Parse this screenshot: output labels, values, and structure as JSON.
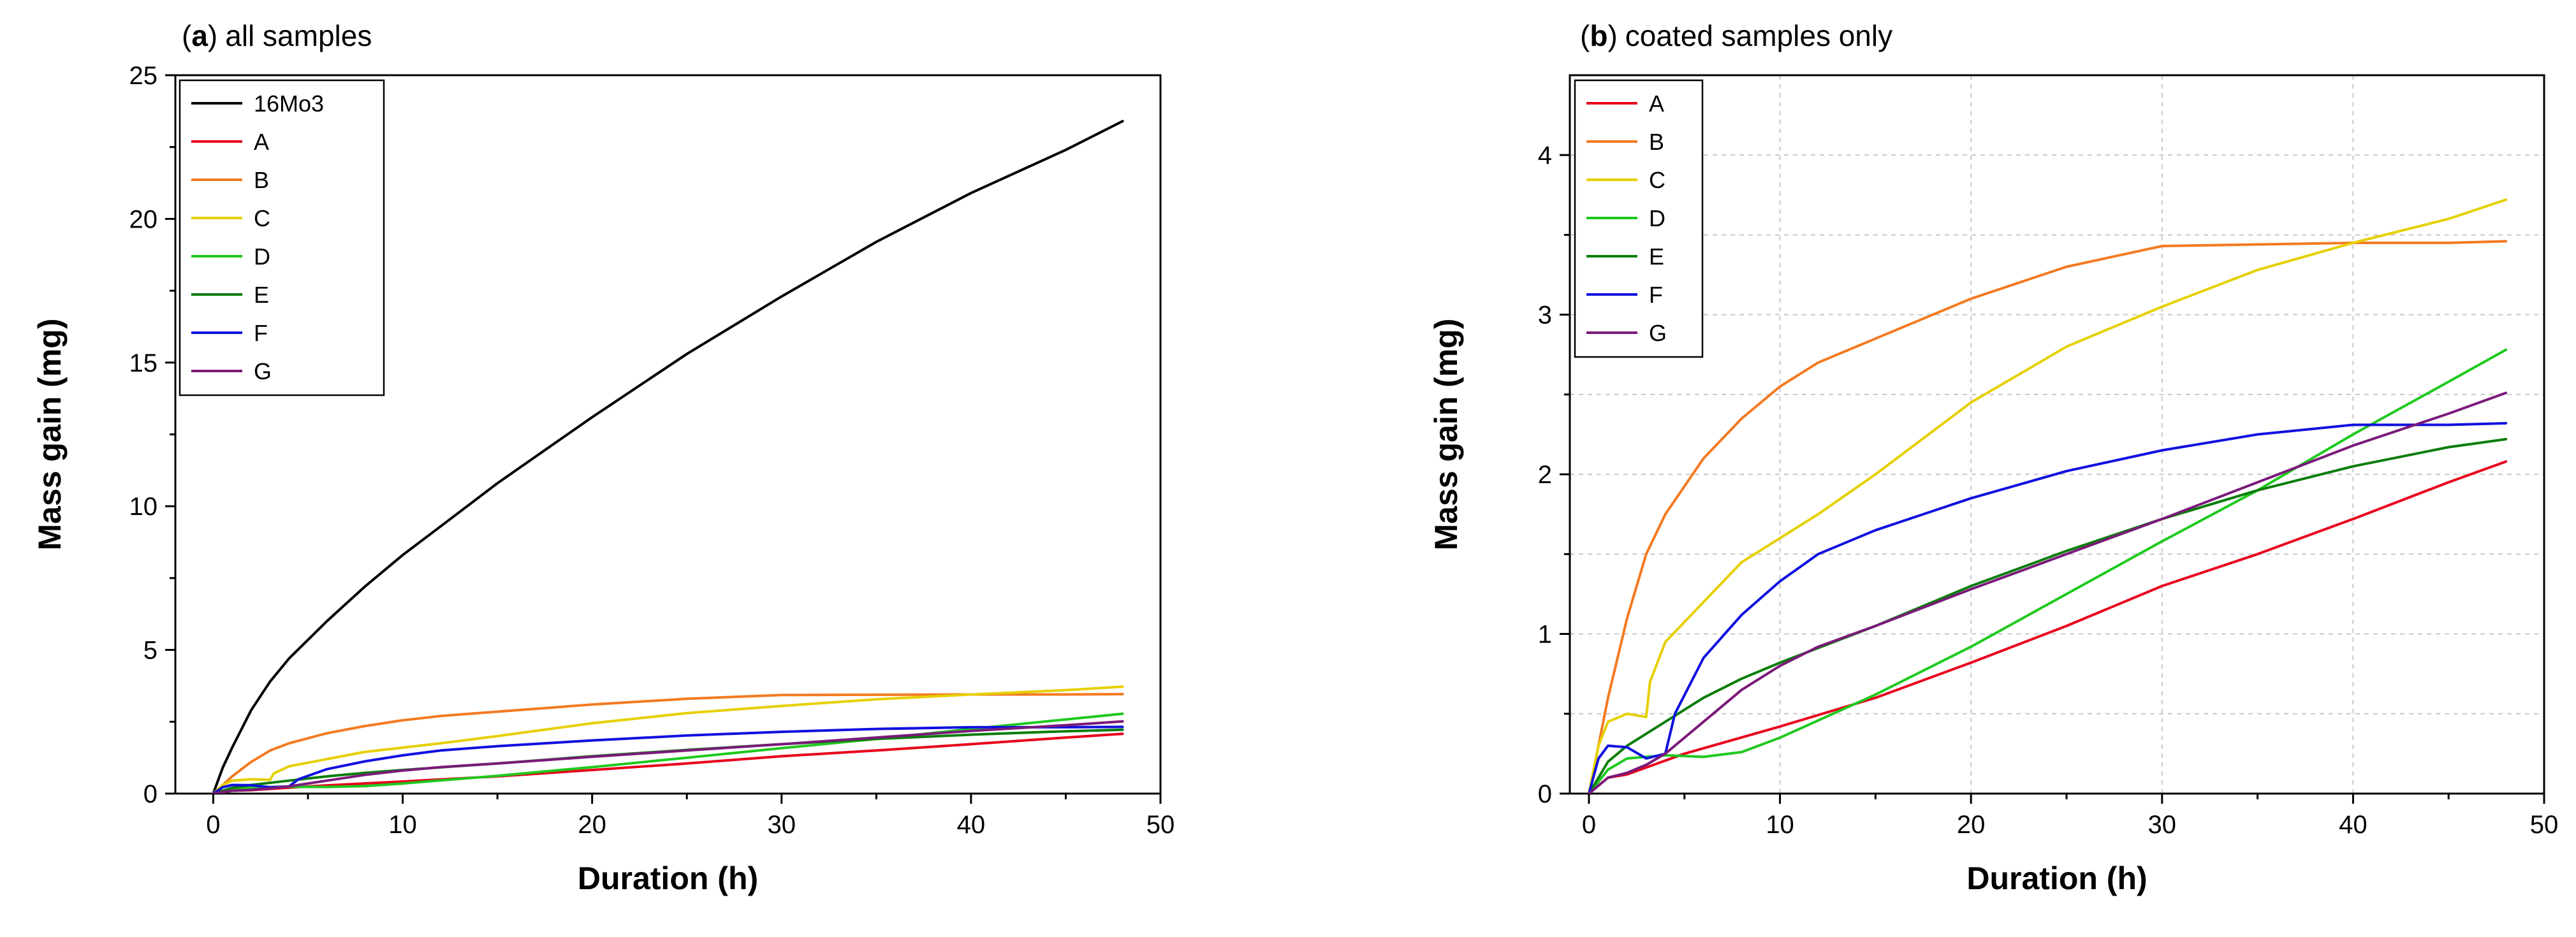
{
  "chart_data": [
    {
      "id": "panel-a",
      "type": "line",
      "title_letter": "a",
      "title_text": "all samples",
      "title_open": "(",
      "title_close": ")",
      "xlabel": "Duration (h)",
      "ylabel": "Mass gain (mg)",
      "xlim": [
        -2,
        50
      ],
      "ylim": [
        0,
        25
      ],
      "xticks": [
        0,
        10,
        20,
        30,
        40,
        50
      ],
      "yticks": [
        0,
        5,
        10,
        15,
        20,
        25
      ],
      "grid": false,
      "legend": "top-left",
      "series": [
        {
          "name": "16Mo3",
          "color": "#000000",
          "x": [
            0,
            0.5,
            1,
            2,
            3,
            4,
            6,
            8,
            10,
            12,
            15,
            20,
            25,
            30,
            35,
            40,
            45,
            48
          ],
          "y": [
            0,
            0.9,
            1.6,
            2.9,
            3.9,
            4.7,
            6.0,
            7.2,
            8.3,
            9.3,
            10.8,
            13.1,
            15.3,
            17.3,
            19.2,
            20.9,
            22.4,
            23.4
          ]
        },
        {
          "name": "A",
          "color": "#e8001c",
          "x": [
            0,
            1,
            2,
            5,
            10,
            15,
            20,
            25,
            30,
            35,
            40,
            45,
            48
          ],
          "y": [
            0,
            0.1,
            0.12,
            0.25,
            0.42,
            0.6,
            0.82,
            1.05,
            1.3,
            1.5,
            1.72,
            1.95,
            2.08
          ]
        },
        {
          "name": "B",
          "color": "#f47a20",
          "x": [
            0,
            0.5,
            1,
            2,
            3,
            4,
            6,
            8,
            10,
            12,
            15,
            20,
            25,
            30,
            35,
            40,
            45,
            48
          ],
          "y": [
            0,
            0.3,
            0.6,
            1.1,
            1.5,
            1.75,
            2.1,
            2.35,
            2.55,
            2.7,
            2.85,
            3.1,
            3.3,
            3.43,
            3.44,
            3.45,
            3.45,
            3.46
          ]
        },
        {
          "name": "C",
          "color": "#e6d000",
          "x": [
            0,
            0.5,
            1,
            2,
            3,
            3.2,
            4,
            6,
            8,
            10,
            12,
            15,
            20,
            25,
            30,
            35,
            40,
            45,
            48
          ],
          "y": [
            0,
            0.3,
            0.45,
            0.5,
            0.48,
            0.7,
            0.95,
            1.2,
            1.45,
            1.6,
            1.75,
            2.0,
            2.45,
            2.8,
            3.05,
            3.28,
            3.45,
            3.6,
            3.72
          ]
        },
        {
          "name": "D",
          "color": "#1fc91f",
          "x": [
            0,
            1,
            2,
            4,
            6,
            8,
            10,
            15,
            20,
            25,
            30,
            35,
            40,
            45,
            48
          ],
          "y": [
            0,
            0.15,
            0.22,
            0.24,
            0.23,
            0.26,
            0.35,
            0.62,
            0.92,
            1.25,
            1.58,
            1.9,
            2.25,
            2.58,
            2.78
          ]
        },
        {
          "name": "E",
          "color": "#0b7d0b",
          "x": [
            0,
            1,
            2,
            4,
            6,
            8,
            10,
            15,
            20,
            25,
            30,
            35,
            40,
            45,
            48
          ],
          "y": [
            0,
            0.2,
            0.3,
            0.45,
            0.6,
            0.72,
            0.82,
            1.05,
            1.3,
            1.52,
            1.72,
            1.9,
            2.05,
            2.17,
            2.22
          ]
        },
        {
          "name": "F",
          "color": "#1010e0",
          "x": [
            0,
            0.5,
            1,
            2,
            3,
            4,
            4.5,
            6,
            8,
            10,
            12,
            15,
            20,
            25,
            30,
            35,
            40,
            45,
            48
          ],
          "y": [
            0,
            0.22,
            0.3,
            0.29,
            0.22,
            0.25,
            0.5,
            0.85,
            1.12,
            1.33,
            1.5,
            1.65,
            1.85,
            2.02,
            2.15,
            2.25,
            2.31,
            2.31,
            2.32
          ]
        },
        {
          "name": "G",
          "color": "#7a1a7a",
          "x": [
            0,
            1,
            2,
            3,
            4,
            6,
            8,
            10,
            12,
            15,
            20,
            25,
            30,
            35,
            40,
            45,
            48
          ],
          "y": [
            0,
            0.1,
            0.13,
            0.18,
            0.25,
            0.45,
            0.65,
            0.8,
            0.92,
            1.05,
            1.28,
            1.5,
            1.72,
            1.95,
            2.18,
            2.38,
            2.51
          ]
        }
      ]
    },
    {
      "id": "panel-b",
      "type": "line",
      "title_letter": "b",
      "title_text": "coated samples only",
      "title_open": "(",
      "title_close": ")",
      "xlabel": "Duration (h)",
      "ylabel": "Mass gain (mg)",
      "xlim": [
        -1,
        50
      ],
      "ylim": [
        0,
        4.5
      ],
      "xticks": [
        0,
        10,
        20,
        30,
        40,
        50
      ],
      "yticks": [
        0,
        1,
        2,
        3,
        4
      ],
      "grid": true,
      "legend": "top-left",
      "series": [
        {
          "name": "A",
          "color": "#e8001c",
          "x": [
            0,
            1,
            2,
            5,
            10,
            15,
            20,
            25,
            30,
            35,
            40,
            45,
            48
          ],
          "y": [
            0,
            0.1,
            0.12,
            0.25,
            0.42,
            0.6,
            0.82,
            1.05,
            1.3,
            1.5,
            1.72,
            1.95,
            2.08
          ]
        },
        {
          "name": "B",
          "color": "#f47a20",
          "x": [
            0,
            0.5,
            1,
            2,
            3,
            4,
            6,
            8,
            10,
            12,
            15,
            20,
            25,
            30,
            35,
            40,
            45,
            48
          ],
          "y": [
            0,
            0.3,
            0.6,
            1.1,
            1.5,
            1.75,
            2.1,
            2.35,
            2.55,
            2.7,
            2.85,
            3.1,
            3.3,
            3.43,
            3.44,
            3.45,
            3.45,
            3.46
          ]
        },
        {
          "name": "C",
          "color": "#e6d000",
          "x": [
            0,
            0.5,
            1,
            2,
            3,
            3.2,
            4,
            6,
            8,
            10,
            12,
            15,
            20,
            25,
            30,
            35,
            40,
            45,
            48
          ],
          "y": [
            0,
            0.3,
            0.45,
            0.5,
            0.48,
            0.7,
            0.95,
            1.2,
            1.45,
            1.6,
            1.75,
            2.0,
            2.45,
            2.8,
            3.05,
            3.28,
            3.45,
            3.6,
            3.72
          ]
        },
        {
          "name": "D",
          "color": "#1fc91f",
          "x": [
            0,
            1,
            2,
            4,
            6,
            8,
            10,
            15,
            20,
            25,
            30,
            35,
            40,
            45,
            48
          ],
          "y": [
            0,
            0.15,
            0.22,
            0.24,
            0.23,
            0.26,
            0.35,
            0.62,
            0.92,
            1.25,
            1.58,
            1.9,
            2.25,
            2.58,
            2.78
          ]
        },
        {
          "name": "E",
          "color": "#0b7d0b",
          "x": [
            0,
            1,
            2,
            4,
            6,
            8,
            10,
            15,
            20,
            25,
            30,
            35,
            40,
            45,
            48
          ],
          "y": [
            0,
            0.2,
            0.3,
            0.45,
            0.6,
            0.72,
            0.82,
            1.05,
            1.3,
            1.52,
            1.72,
            1.9,
            2.05,
            2.17,
            2.22
          ]
        },
        {
          "name": "F",
          "color": "#1010e0",
          "x": [
            0,
            0.5,
            1,
            2,
            3,
            4,
            4.5,
            6,
            8,
            10,
            12,
            15,
            20,
            25,
            30,
            35,
            40,
            45,
            48
          ],
          "y": [
            0,
            0.22,
            0.3,
            0.29,
            0.22,
            0.25,
            0.5,
            0.85,
            1.12,
            1.33,
            1.5,
            1.65,
            1.85,
            2.02,
            2.15,
            2.25,
            2.31,
            2.31,
            2.32
          ]
        },
        {
          "name": "G",
          "color": "#7a1a7a",
          "x": [
            0,
            1,
            2,
            3,
            4,
            6,
            8,
            10,
            12,
            15,
            20,
            25,
            30,
            35,
            40,
            45,
            48
          ],
          "y": [
            0,
            0.1,
            0.13,
            0.18,
            0.25,
            0.45,
            0.65,
            0.8,
            0.92,
            1.05,
            1.28,
            1.5,
            1.72,
            1.95,
            2.18,
            2.38,
            2.51
          ]
        }
      ]
    }
  ]
}
